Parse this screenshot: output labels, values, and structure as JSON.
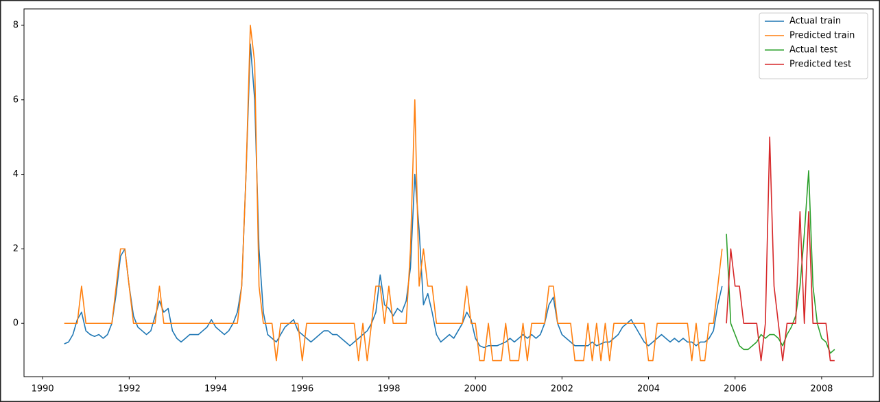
{
  "chart_data": {
    "type": "line",
    "xlim": [
      1989.57,
      2009.19
    ],
    "ylim": [
      -1.43,
      8.44
    ],
    "xticks": [
      1990,
      1992,
      1994,
      1996,
      1998,
      2000,
      2002,
      2004,
      2006,
      2008
    ],
    "yticks": [
      0,
      2,
      4,
      6,
      8
    ],
    "grid": false,
    "legend": "upper right",
    "series": [
      {
        "name": "Actual train",
        "color": "#1f77b4",
        "x": [
          1990.5,
          1990.6,
          1990.7,
          1990.8,
          1990.9,
          1991.0,
          1991.1,
          1991.2,
          1991.3,
          1991.4,
          1991.5,
          1991.6,
          1991.7,
          1991.8,
          1991.9,
          1992.0,
          1992.1,
          1992.2,
          1992.3,
          1992.4,
          1992.5,
          1992.6,
          1992.7,
          1992.8,
          1992.9,
          1993.0,
          1993.1,
          1993.2,
          1993.3,
          1993.4,
          1993.5,
          1993.6,
          1993.7,
          1993.8,
          1993.9,
          1994.0,
          1994.1,
          1994.2,
          1994.3,
          1994.4,
          1994.5,
          1994.6,
          1994.7,
          1994.8,
          1994.9,
          1995.0,
          1995.1,
          1995.2,
          1995.3,
          1995.4,
          1995.5,
          1995.6,
          1995.7,
          1995.8,
          1995.9,
          1996.0,
          1996.1,
          1996.2,
          1996.3,
          1996.4,
          1996.5,
          1996.6,
          1996.7,
          1996.8,
          1996.9,
          1997.0,
          1997.1,
          1997.2,
          1997.3,
          1997.4,
          1997.5,
          1997.6,
          1997.7,
          1997.8,
          1997.9,
          1998.0,
          1998.1,
          1998.2,
          1998.3,
          1998.4,
          1998.5,
          1998.6,
          1998.7,
          1998.8,
          1998.9,
          1999.0,
          1999.1,
          1999.2,
          1999.3,
          1999.4,
          1999.5,
          1999.6,
          1999.7,
          1999.8,
          1999.9,
          2000.0,
          2000.1,
          2000.2,
          2000.3,
          2000.4,
          2000.5,
          2000.6,
          2000.7,
          2000.8,
          2000.9,
          2001.0,
          2001.1,
          2001.2,
          2001.3,
          2001.4,
          2001.5,
          2001.6,
          2001.7,
          2001.8,
          2001.9,
          2002.0,
          2002.1,
          2002.2,
          2002.3,
          2002.4,
          2002.5,
          2002.6,
          2002.7,
          2002.8,
          2002.9,
          2003.0,
          2003.1,
          2003.2,
          2003.3,
          2003.4,
          2003.5,
          2003.6,
          2003.7,
          2003.8,
          2003.9,
          2004.0,
          2004.1,
          2004.2,
          2004.3,
          2004.4,
          2004.5,
          2004.6,
          2004.7,
          2004.8,
          2004.9,
          2005.0,
          2005.1,
          2005.2,
          2005.3,
          2005.4,
          2005.5,
          2005.6,
          2005.7
        ],
        "values": [
          -0.55,
          -0.5,
          -0.3,
          0.1,
          0.3,
          -0.2,
          -0.3,
          -0.35,
          -0.3,
          -0.4,
          -0.3,
          0.0,
          0.8,
          1.8,
          2.0,
          1.0,
          0.2,
          -0.1,
          -0.2,
          -0.3,
          -0.2,
          0.2,
          0.6,
          0.3,
          0.4,
          -0.2,
          -0.4,
          -0.5,
          -0.4,
          -0.3,
          -0.3,
          -0.3,
          -0.2,
          -0.1,
          0.1,
          -0.1,
          -0.2,
          -0.3,
          -0.2,
          0.0,
          0.3,
          1.0,
          4.0,
          7.5,
          6.0,
          2.0,
          0.3,
          -0.3,
          -0.4,
          -0.5,
          -0.3,
          -0.1,
          0.0,
          0.1,
          -0.2,
          -0.3,
          -0.4,
          -0.5,
          -0.4,
          -0.3,
          -0.2,
          -0.2,
          -0.3,
          -0.3,
          -0.4,
          -0.5,
          -0.6,
          -0.5,
          -0.4,
          -0.3,
          -0.2,
          0.0,
          0.3,
          1.3,
          0.5,
          0.4,
          0.2,
          0.4,
          0.3,
          0.6,
          1.5,
          4.0,
          2.5,
          0.5,
          0.8,
          0.3,
          -0.3,
          -0.5,
          -0.4,
          -0.3,
          -0.4,
          -0.2,
          0.0,
          0.3,
          0.1,
          -0.4,
          -0.6,
          -0.65,
          -0.6,
          -0.6,
          -0.6,
          -0.55,
          -0.5,
          -0.4,
          -0.5,
          -0.4,
          -0.3,
          -0.4,
          -0.3,
          -0.4,
          -0.3,
          0.0,
          0.5,
          0.7,
          0.0,
          -0.3,
          -0.4,
          -0.5,
          -0.6,
          -0.6,
          -0.6,
          -0.6,
          -0.5,
          -0.6,
          -0.55,
          -0.5,
          -0.5,
          -0.4,
          -0.3,
          -0.1,
          0.0,
          0.1,
          -0.1,
          -0.3,
          -0.5,
          -0.6,
          -0.5,
          -0.4,
          -0.3,
          -0.4,
          -0.5,
          -0.4,
          -0.5,
          -0.4,
          -0.5,
          -0.5,
          -0.6,
          -0.5,
          -0.5,
          -0.4,
          -0.2,
          0.5,
          1.0
        ]
      },
      {
        "name": "Predicted train",
        "color": "#ff7f0e",
        "x": [
          1990.5,
          1990.6,
          1990.7,
          1990.8,
          1990.9,
          1991.0,
          1991.1,
          1991.2,
          1991.3,
          1991.4,
          1991.5,
          1991.6,
          1991.7,
          1991.8,
          1991.9,
          1992.0,
          1992.1,
          1992.2,
          1992.3,
          1992.4,
          1992.5,
          1992.6,
          1992.7,
          1992.8,
          1992.9,
          1993.0,
          1993.1,
          1993.2,
          1993.3,
          1993.4,
          1993.5,
          1993.6,
          1993.7,
          1993.8,
          1993.9,
          1994.0,
          1994.1,
          1994.2,
          1994.3,
          1994.4,
          1994.5,
          1994.6,
          1994.7,
          1994.8,
          1994.9,
          1995.0,
          1995.1,
          1995.2,
          1995.3,
          1995.4,
          1995.5,
          1995.6,
          1995.7,
          1995.8,
          1995.9,
          1996.0,
          1996.1,
          1996.2,
          1996.3,
          1996.4,
          1996.5,
          1996.6,
          1996.7,
          1996.8,
          1996.9,
          1997.0,
          1997.1,
          1997.2,
          1997.3,
          1997.4,
          1997.5,
          1997.6,
          1997.7,
          1997.8,
          1997.9,
          1998.0,
          1998.1,
          1998.2,
          1998.3,
          1998.4,
          1998.5,
          1998.6,
          1998.7,
          1998.8,
          1998.9,
          1999.0,
          1999.1,
          1999.2,
          1999.3,
          1999.4,
          1999.5,
          1999.6,
          1999.7,
          1999.8,
          1999.9,
          2000.0,
          2000.1,
          2000.2,
          2000.3,
          2000.4,
          2000.5,
          2000.6,
          2000.7,
          2000.8,
          2000.9,
          2001.0,
          2001.1,
          2001.2,
          2001.3,
          2001.4,
          2001.5,
          2001.6,
          2001.7,
          2001.8,
          2001.9,
          2002.0,
          2002.1,
          2002.2,
          2002.3,
          2002.4,
          2002.5,
          2002.6,
          2002.7,
          2002.8,
          2002.9,
          2003.0,
          2003.1,
          2003.2,
          2003.3,
          2003.4,
          2003.5,
          2003.6,
          2003.7,
          2003.8,
          2003.9,
          2004.0,
          2004.1,
          2004.2,
          2004.3,
          2004.4,
          2004.5,
          2004.6,
          2004.7,
          2004.8,
          2004.9,
          2005.0,
          2005.1,
          2005.2,
          2005.3,
          2005.4,
          2005.5,
          2005.6,
          2005.7
        ],
        "values": [
          0,
          0,
          0,
          0,
          1,
          0,
          0,
          0,
          0,
          0,
          0,
          0,
          1,
          2,
          2,
          1,
          0,
          0,
          0,
          0,
          0,
          0,
          1,
          0,
          0,
          0,
          0,
          0,
          0,
          0,
          0,
          0,
          0,
          0,
          0,
          0,
          0,
          0,
          0,
          0,
          0,
          1,
          4,
          8,
          7,
          1,
          0,
          0,
          0,
          -1,
          0,
          0,
          0,
          0,
          0,
          -1,
          0,
          0,
          0,
          0,
          0,
          0,
          0,
          0,
          0,
          0,
          0,
          0,
          -1,
          0,
          -1,
          0,
          1,
          1,
          0,
          1,
          0,
          0,
          0,
          0,
          2,
          6,
          1,
          2,
          1,
          1,
          0,
          0,
          0,
          0,
          0,
          0,
          0,
          1,
          0,
          0,
          -1,
          -1,
          0,
          -1,
          -1,
          -1,
          0,
          -1,
          -1,
          -1,
          0,
          -1,
          0,
          0,
          0,
          0,
          1,
          1,
          0,
          0,
          0,
          0,
          -1,
          -1,
          -1,
          0,
          -1,
          0,
          -1,
          0,
          -1,
          0,
          0,
          0,
          0,
          0,
          0,
          0,
          0,
          -1,
          -1,
          0,
          0,
          0,
          0,
          0,
          0,
          0,
          0,
          -1,
          0,
          -1,
          -1,
          0,
          0,
          1,
          2
        ]
      },
      {
        "name": "Actual test",
        "color": "#2ca02c",
        "x": [
          2005.8,
          2005.9,
          2006.0,
          2006.1,
          2006.2,
          2006.3,
          2006.4,
          2006.5,
          2006.6,
          2006.7,
          2006.8,
          2006.9,
          2007.0,
          2007.1,
          2007.2,
          2007.3,
          2007.4,
          2007.5,
          2007.6,
          2007.7,
          2007.8,
          2007.9,
          2008.0,
          2008.1,
          2008.2,
          2008.3
        ],
        "values": [
          2.4,
          0.0,
          -0.3,
          -0.6,
          -0.7,
          -0.7,
          -0.6,
          -0.5,
          -0.3,
          -0.4,
          -0.3,
          -0.3,
          -0.4,
          -0.6,
          -0.3,
          -0.1,
          0.2,
          1.0,
          2.4,
          4.1,
          1.0,
          0.0,
          -0.4,
          -0.5,
          -0.8,
          -0.7
        ]
      },
      {
        "name": "Predicted test",
        "color": "#d62728",
        "x": [
          2005.8,
          2005.9,
          2006.0,
          2006.1,
          2006.2,
          2006.3,
          2006.4,
          2006.5,
          2006.6,
          2006.7,
          2006.8,
          2006.9,
          2007.0,
          2007.1,
          2007.2,
          2007.3,
          2007.4,
          2007.5,
          2007.6,
          2007.7,
          2007.8,
          2007.9,
          2008.0,
          2008.1,
          2008.2,
          2008.3
        ],
        "values": [
          0,
          2,
          1,
          1,
          0,
          0,
          0,
          0,
          -1,
          0,
          5,
          1,
          0,
          -1,
          0,
          0,
          0,
          3,
          0,
          3,
          0,
          0,
          0,
          0,
          -1,
          -1
        ]
      }
    ]
  }
}
